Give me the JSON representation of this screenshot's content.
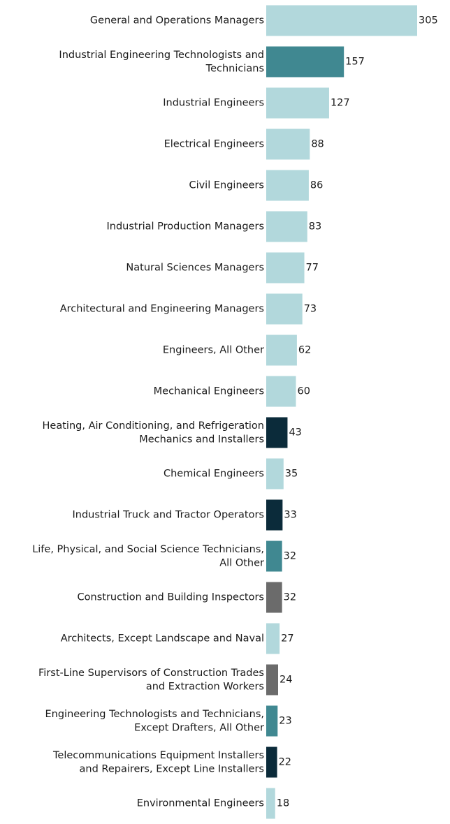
{
  "chart_data": {
    "type": "bar",
    "orientation": "horizontal",
    "title": "",
    "xlabel": "",
    "ylabel": "",
    "grid": false,
    "legend": "none",
    "xlim": [
      0,
      305
    ],
    "categories": [
      [
        "General and Operations Managers"
      ],
      [
        "Industrial Engineering Technologists and",
        "Technicians"
      ],
      [
        "Industrial Engineers"
      ],
      [
        "Electrical Engineers"
      ],
      [
        "Civil Engineers"
      ],
      [
        "Industrial Production Managers"
      ],
      [
        "Natural Sciences Managers"
      ],
      [
        "Architectural and Engineering Managers"
      ],
      [
        "Engineers, All Other"
      ],
      [
        "Mechanical Engineers"
      ],
      [
        "Heating, Air Conditioning, and Refrigeration",
        "Mechanics and Installers"
      ],
      [
        "Chemical Engineers"
      ],
      [
        "Industrial Truck and Tractor Operators"
      ],
      [
        "Life, Physical, and Social Science Technicians,",
        "All Other"
      ],
      [
        "Construction and Building Inspectors"
      ],
      [
        "Architects, Except Landscape and Naval"
      ],
      [
        "First-Line Supervisors of Construction Trades",
        "and Extraction Workers"
      ],
      [
        "Engineering Technologists and Technicians,",
        "Except Drafters, All Other"
      ],
      [
        "Telecommunications Equipment Installers",
        "and Repairers, Except Line Installers"
      ],
      [
        "Environmental Engineers"
      ]
    ],
    "values": [
      305,
      157,
      127,
      88,
      86,
      83,
      77,
      73,
      62,
      60,
      43,
      35,
      33,
      32,
      32,
      27,
      24,
      23,
      22,
      18
    ],
    "bar_color_keys": [
      "light",
      "teal",
      "light",
      "light",
      "light",
      "light",
      "light",
      "light",
      "light",
      "light",
      "dark",
      "light",
      "dark",
      "teal",
      "gray",
      "light",
      "gray",
      "teal",
      "dark",
      "light"
    ]
  },
  "colors": {
    "light": "#b2d8dc",
    "teal": "#408891",
    "dark": "#0b2b3a",
    "gray": "#6b6b6b",
    "text": "#1a1a1a"
  }
}
